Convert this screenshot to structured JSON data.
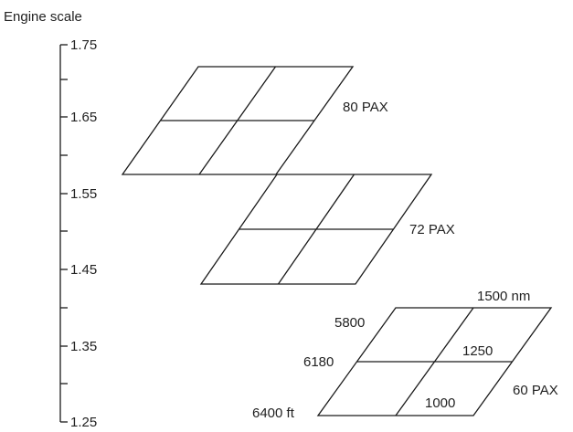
{
  "axis": {
    "title": "Engine scale",
    "ticks": [
      "1.75",
      "1.65",
      "1.55",
      "1.45",
      "1.35",
      "1.25"
    ]
  },
  "grids": [
    {
      "label": "80 PAX"
    },
    {
      "label": "72 PAX"
    },
    {
      "label": "60 PAX"
    }
  ],
  "bottom_grid_labels": {
    "range_top": "1500 nm",
    "range_mid": "1250",
    "range_low": "1000",
    "field_top": "5800",
    "field_mid": "6180",
    "field_low": "6400 ft"
  },
  "colors": {
    "line": "#1a1a1a",
    "text": "#222222"
  }
}
